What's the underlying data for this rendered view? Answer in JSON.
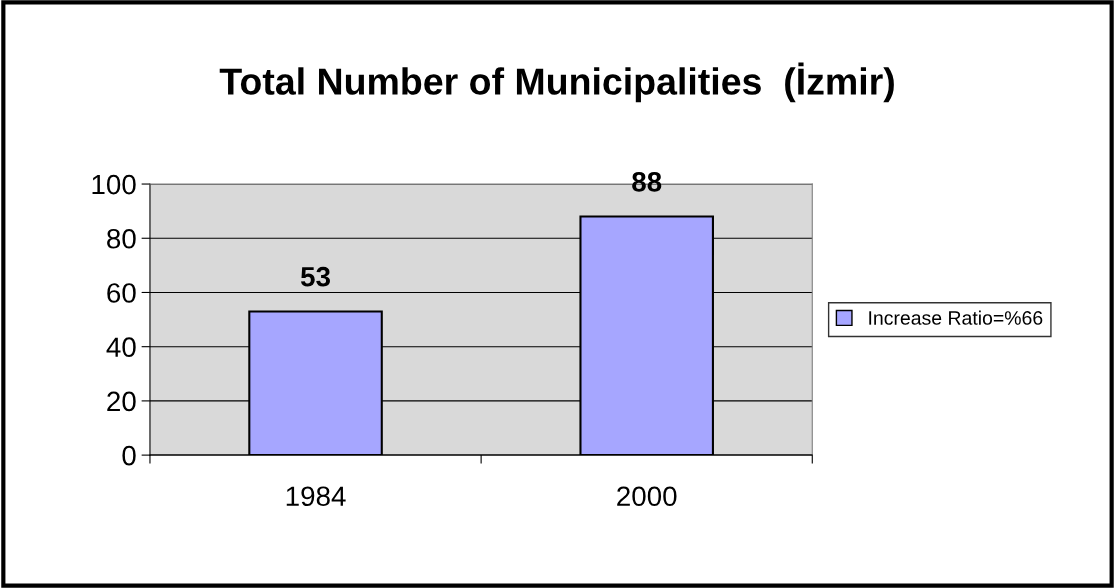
{
  "chart_data": {
    "type": "bar",
    "title": "Total Number of Municipalities  (İzmir)",
    "categories": [
      "1984",
      "2000"
    ],
    "series": [
      {
        "name": "Increase Ratio=%66",
        "color": "#a6a6ff",
        "values": [
          53,
          88
        ]
      }
    ],
    "ylim": [
      0,
      100
    ],
    "yticks": [
      0,
      20,
      40,
      60,
      80,
      100
    ],
    "grid": "y",
    "legend": "right",
    "data_labels": true
  }
}
